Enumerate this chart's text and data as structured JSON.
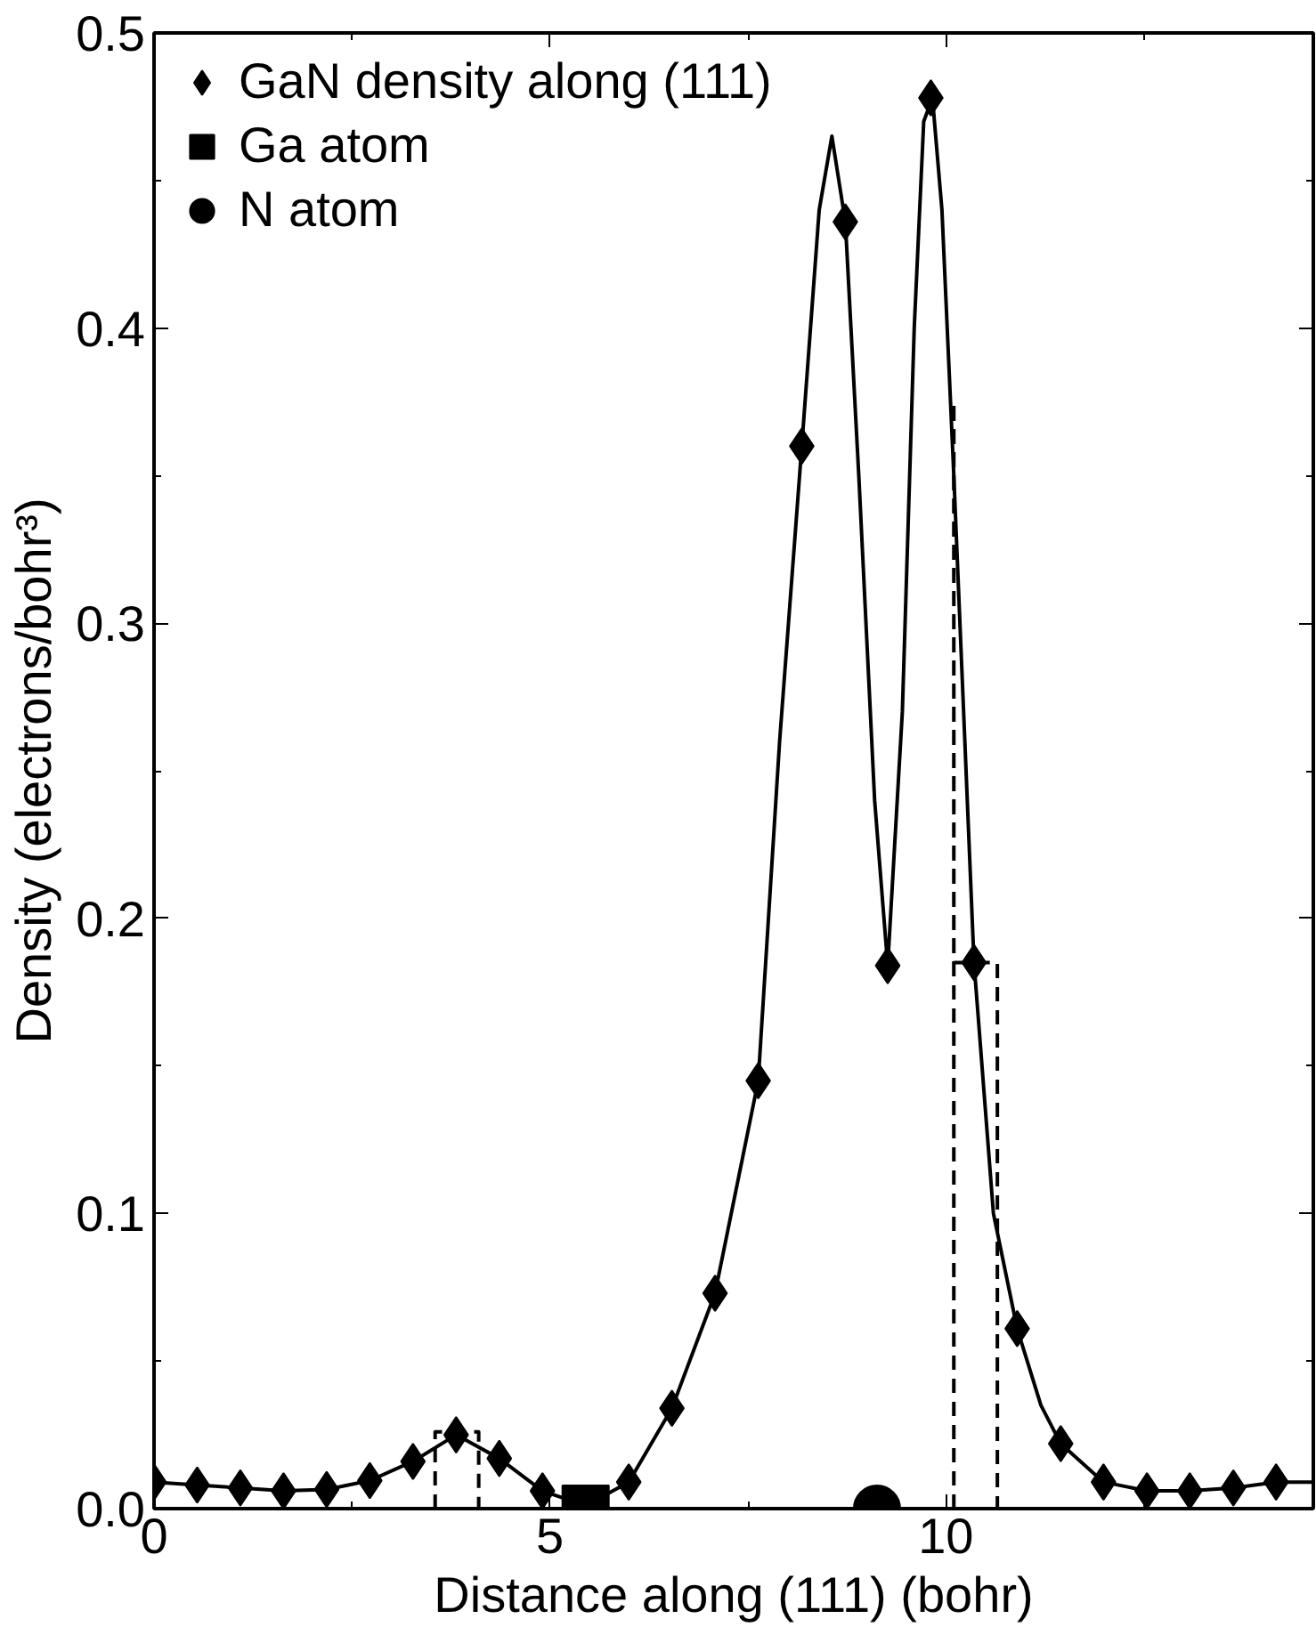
{
  "chart_data": {
    "type": "line",
    "xlabel": "Distance along (111) (bohr)",
    "ylabel": "Density (electrons/bohr³)",
    "xlim": [
      0,
      14.64
    ],
    "ylim": [
      0,
      0.5
    ],
    "xticks": [
      0,
      5,
      10,
      {
        "value": 2.5,
        "label": null
      },
      {
        "value": 7.5,
        "label": null
      },
      {
        "value": 12.5,
        "label": null
      }
    ],
    "yticks": [
      {
        "value": 0,
        "label": "0.0"
      },
      {
        "value": 0.1,
        "label": "0.1"
      },
      {
        "value": 0.2,
        "label": "0.2"
      },
      {
        "value": 0.3,
        "label": "0.3"
      },
      {
        "value": 0.4,
        "label": "0.4"
      },
      {
        "value": 0.5,
        "label": "0.5"
      },
      {
        "value": 0.05,
        "label": null
      },
      {
        "value": 0.15,
        "label": null
      },
      {
        "value": 0.25,
        "label": null
      },
      {
        "value": 0.35,
        "label": null
      },
      {
        "value": 0.45,
        "label": null
      }
    ],
    "grid": false,
    "legend": "top left",
    "series": [
      {
        "color": "#000000",
        "marker": "none",
        "line_style": "solid",
        "x": [
          0,
          0.545,
          1.09,
          1.635,
          2.18,
          2.725,
          3.27,
          3.815,
          4.36,
          4.905,
          5.45,
          5.995,
          6.54,
          7.085,
          7.63,
          7.9,
          8.18,
          8.4,
          8.56,
          8.73,
          8.9,
          9.1,
          9.265,
          9.45,
          9.6,
          9.72,
          9.83,
          9.95,
          10.1,
          10.355,
          10.6,
          10.9,
          11.2,
          11.45,
          11.99,
          12.54,
          13.08,
          13.63,
          14.17,
          14.64
        ],
        "values": [
          0.009,
          0.008,
          0.007,
          0.006,
          0.0065,
          0.0095,
          0.016,
          0.025,
          0.017,
          0.006,
          0.001,
          0.009,
          0.034,
          0.073,
          0.145,
          0.26,
          0.36,
          0.44,
          0.465,
          0.436,
          0.35,
          0.24,
          0.184,
          0.27,
          0.4,
          0.47,
          0.478,
          0.44,
          0.35,
          0.185,
          0.1,
          0.061,
          0.035,
          0.022,
          0.009,
          0.006,
          0.006,
          0.007,
          0.009,
          0.009
        ]
      },
      {
        "type": "scatter",
        "name": "GaN density along (111)",
        "color": "#000000",
        "marker": "diamond",
        "x": [
          0,
          0.545,
          1.09,
          1.635,
          2.18,
          2.725,
          3.27,
          3.815,
          4.36,
          4.905,
          5.995,
          6.54,
          7.085,
          7.63,
          8.18,
          8.73,
          9.265,
          9.81,
          10.355,
          10.9,
          11.45,
          11.99,
          12.54,
          13.08,
          13.63,
          14.17
        ],
        "values": [
          0.009,
          0.008,
          0.007,
          0.006,
          0.0065,
          0.0095,
          0.016,
          0.025,
          0.017,
          0.006,
          0.009,
          0.034,
          0.073,
          0.145,
          0.36,
          0.436,
          0.184,
          0.478,
          0.185,
          0.061,
          0.022,
          0.009,
          0.006,
          0.006,
          0.007,
          0.009
        ]
      },
      {
        "type": "scatter",
        "name": "Ga atom",
        "color": "#000000",
        "marker": "square",
        "x": [
          5.45
        ],
        "values": [
          0
        ]
      },
      {
        "type": "scatter",
        "name": "N atom",
        "color": "#000000",
        "marker": "circle",
        "x": [
          9.13
        ],
        "values": [
          0
        ]
      },
      {
        "color": "#000000",
        "marker": "none",
        "line_style": "dashed",
        "x": [
          3.55,
          3.55,
          4.1,
          4.1
        ],
        "values": [
          0,
          0.026,
          0.026,
          0
        ]
      },
      {
        "color": "#000000",
        "marker": "none",
        "line_style": "dashed",
        "x": [
          10.1,
          10.1,
          10.1,
          10.65,
          10.65
        ],
        "values": [
          0,
          0.375,
          0.185,
          0.185,
          0
        ]
      }
    ]
  }
}
